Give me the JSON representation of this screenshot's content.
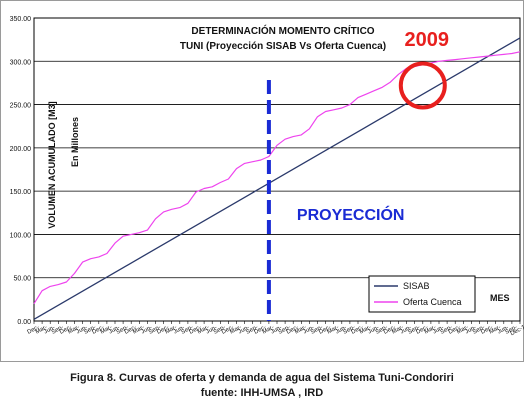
{
  "chart_data": {
    "type": "line",
    "title": "DETERMINACIÓN MOMENTO CRÍTICO",
    "subtitle": "TUNI (Proyección SISAB Vs Oferta Cuenca)",
    "ylabel": "VOLUMEN ACUMULADO [M3]",
    "ylabel_unit": "En Millones",
    "xlabel": "MES",
    "ylim": [
      0,
      350
    ],
    "yticks": [
      "0.00",
      "50.00",
      "100.00",
      "150.00",
      "200.00",
      "250.00",
      "300.00",
      "350.00"
    ],
    "grid": true,
    "legend_position": "bottom-right",
    "x_ticks": [
      "Dec-",
      "Mar-",
      "Jun-",
      "Sep-",
      "Dec-",
      "Mar-",
      "Jun-",
      "Sep-",
      "Dec-",
      "Mar-",
      "Jun-",
      "Sep-",
      "Dec-",
      "Mar-",
      "Jun-",
      "Sep-",
      "Dec-",
      "Mar-",
      "Jun-",
      "Sep-",
      "Dec-",
      "Mar-",
      "Jun-",
      "Sep-",
      "Dec-",
      "Mar-",
      "Jun-",
      "Sep-",
      "Dec-",
      "Mar-",
      "Jun-",
      "Sep-",
      "Dec-",
      "Mar-",
      "Jun-",
      "Sep-",
      "Dec-",
      "Mar-",
      "Jun-",
      "Sep-",
      "Dec-",
      "Mar-",
      "Jun-",
      "Sep-",
      "Dec-",
      "Mar-",
      "Jun-",
      "Sep-",
      "Dec-",
      "Mar-",
      "Jun-",
      "Sep-",
      "Dec-",
      "Mar-",
      "Jun-",
      "Sep-",
      "Dec-",
      "Mar-",
      "Jun-",
      "Sep-",
      "Dec-10"
    ],
    "series": [
      {
        "name": "SISAB",
        "color": "#2b3a6b",
        "x": [
          0,
          60
        ],
        "y": [
          2,
          327
        ]
      },
      {
        "name": "Oferta Cuenca",
        "color": "#ee44ee",
        "x": [
          0,
          1,
          2,
          3,
          4,
          5,
          6,
          7,
          8,
          9,
          10,
          11,
          12,
          13,
          14,
          15,
          16,
          17,
          18,
          19,
          20,
          21,
          22,
          23,
          24,
          25,
          26,
          27,
          28,
          29,
          30,
          31,
          32,
          33,
          34,
          35,
          36,
          37,
          38,
          39,
          40,
          41,
          42,
          43,
          44,
          45,
          46,
          47,
          48,
          49,
          50,
          51,
          52,
          53,
          54,
          55,
          56,
          57,
          58,
          59,
          60
        ],
        "y": [
          20,
          35,
          40,
          42,
          45,
          55,
          68,
          72,
          74,
          78,
          90,
          98,
          100,
          102,
          105,
          118,
          126,
          129,
          131,
          136,
          149,
          153,
          155,
          160,
          164,
          176,
          182,
          184,
          186,
          190,
          203,
          210,
          213,
          215,
          222,
          236,
          242,
          244,
          246,
          250,
          258,
          262,
          266,
          270,
          276,
          285,
          292,
          294,
          296,
          298,
          300,
          301,
          302,
          303,
          304,
          305,
          306,
          307,
          308,
          309,
          311
        ]
      }
    ],
    "annotations": {
      "projection_text": "PROYECCIÓN",
      "projection_x": 29,
      "year_label": "2009",
      "critical_point_x": 48,
      "critical_point_y": 272
    }
  },
  "caption": {
    "line1": "Figura 8. Curvas de oferta y demanda de agua del Sistema Tuni-Condoriri",
    "line2": "fuente: IHH-UMSA , IRD"
  }
}
